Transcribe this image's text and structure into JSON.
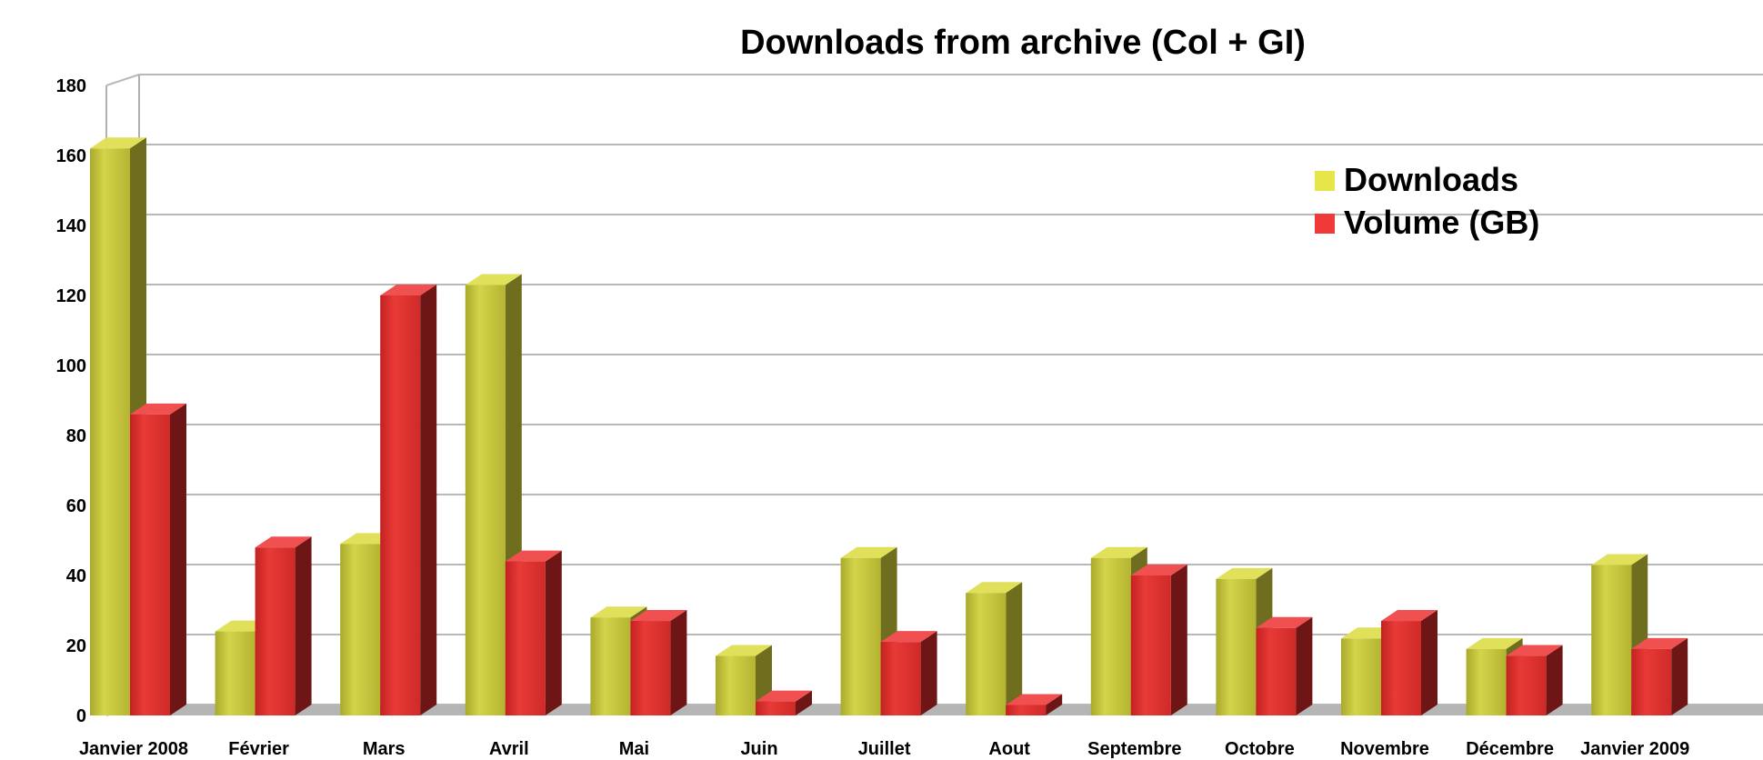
{
  "chart_data": {
    "type": "bar",
    "title": "Downloads from archive (Col + GI)",
    "xlabel": "",
    "ylabel": "",
    "ylim": [
      0,
      180
    ],
    "yticks": [
      0,
      20,
      40,
      60,
      80,
      100,
      120,
      140,
      160,
      180
    ],
    "categories": [
      "Janvier 2008",
      "Février",
      "Mars",
      "Avril",
      "Mai",
      "Juin",
      "Juillet",
      "Aout",
      "Septembre",
      "Octobre",
      "Novembre",
      "Décembre",
      "Janvier 2009"
    ],
    "series": [
      {
        "name": "Downloads",
        "color": "#c8c83c",
        "values": [
          162,
          24,
          49,
          123,
          28,
          17,
          45,
          35,
          45,
          39,
          22,
          19,
          43
        ]
      },
      {
        "name": "Volume (GB)",
        "color": "#e03030",
        "values": [
          86,
          48,
          120,
          44,
          27,
          4,
          21,
          3,
          40,
          25,
          27,
          17,
          19
        ]
      }
    ],
    "grid": true,
    "legend_position": "top-right"
  }
}
